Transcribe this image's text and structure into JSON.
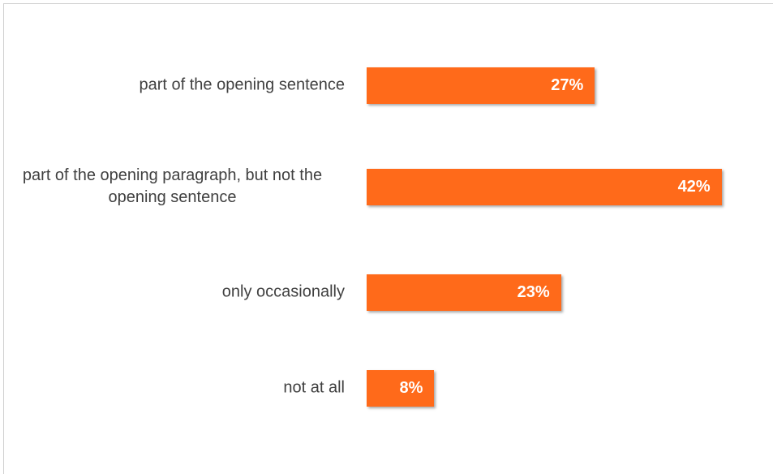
{
  "chart_data": {
    "type": "bar",
    "orientation": "horizontal",
    "categories": [
      "part of the opening sentence",
      "part of the opening paragraph, but not the opening sentence",
      "only occasionally",
      "not at all"
    ],
    "values": [
      27,
      42,
      23,
      8
    ],
    "value_labels": [
      "27%",
      "42%",
      "23%",
      "8%"
    ],
    "color": "#ff6a1a"
  }
}
